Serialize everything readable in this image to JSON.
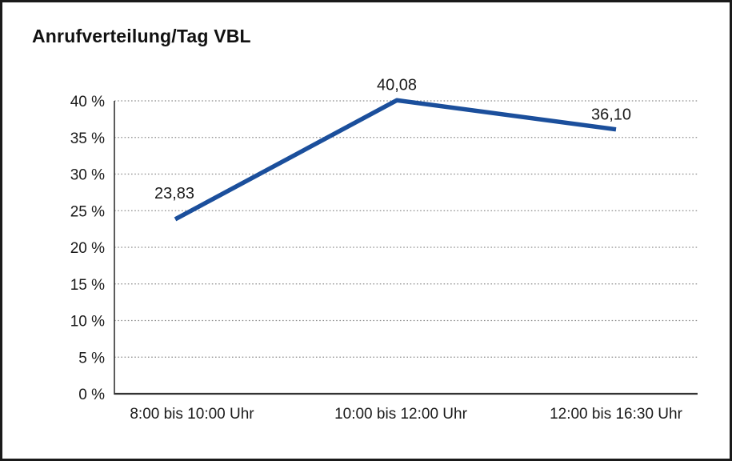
{
  "page": {
    "background_color": "#ffffff",
    "frame_color": "#1a1a1a"
  },
  "chart": {
    "title": "Anrufverteilung/Tag VBL"
  },
  "chart_data": {
    "type": "line",
    "title": "Anrufverteilung/Tag VBL",
    "categories": [
      "8:00 bis 10:00 Uhr",
      "10:00 bis 12:00 Uhr",
      "12:00 bis 16:30 Uhr"
    ],
    "series": [
      {
        "name": "Anrufverteilung",
        "values": [
          23.83,
          40.08,
          36.1
        ],
        "point_labels": [
          "23,83",
          "40,08",
          "36,10"
        ],
        "color": "#1b4f9c"
      }
    ],
    "xlabel": "",
    "ylabel": "",
    "ylim": [
      0,
      40
    ],
    "yticks": [
      0,
      5,
      10,
      15,
      20,
      25,
      30,
      35,
      40
    ],
    "ytick_labels": [
      "0 %",
      "5 %",
      "10 %",
      "15 %",
      "20 %",
      "25 %",
      "30 %",
      "35 %",
      "40 %"
    ],
    "grid": "horizontal-dotted",
    "gridline_color": "#8c8c8c",
    "axis_color": "#333333",
    "legend": "none"
  }
}
